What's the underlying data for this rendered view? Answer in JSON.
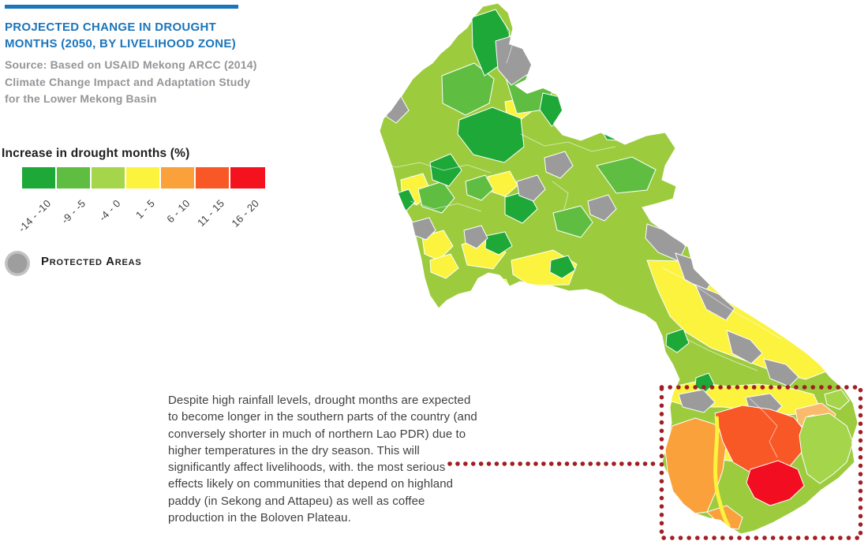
{
  "theme": {
    "accent_blue": "#1B75BB",
    "highlight_red": "#A11E22"
  },
  "header": {
    "title": "PROJECTED CHANGE IN DROUGHT MONTHS (2050, BY LIVELIHOOD ZONE)",
    "source": "Source: Based on USAID Mekong ARCC (2014) Climate Change Impact and Adaptation Study for the Lower Mekong Basin"
  },
  "legend": {
    "title": "Increase in drought months (%)",
    "classes": [
      {
        "label": "-14 - -10",
        "color": "#1DA838"
      },
      {
        "label": "-9 - -5",
        "color": "#5FBE41"
      },
      {
        "label": "-4 - 0",
        "color": "#A5D54A"
      },
      {
        "label": "1 - 5",
        "color": "#FBF33D"
      },
      {
        "label": "6 - 10",
        "color": "#FAA13B"
      },
      {
        "label": "11 - 15",
        "color": "#F75826"
      },
      {
        "label": "16 - 20",
        "color": "#F5121F"
      }
    ],
    "protected": {
      "label": "Protected Areas",
      "fill": "#9E9E9E",
      "ring": "#C2C2C2"
    }
  },
  "annotation": {
    "text": "Despite high rainfall levels, drought months are expected to become longer in the southern parts of the country (and conversely shorter in much of northern Lao PDR) due to higher temperatures in the dry season. This will significantly affect livelihoods, with. the most serious effects likely on communities that depend on highland paddy (in Sekong and Attapeu) as well as coffee production in the Boloven Plateau."
  },
  "map": {
    "palette": {
      "base": "#9CCB3E",
      "dg": "#1DA838",
      "mg": "#5FBE41",
      "lg": "#A5D54A",
      "y": "#FBF33D",
      "o": "#FAA13B",
      "po": "#F9BA6B",
      "ro": "#F75826",
      "r": "#F20D20",
      "gray": "#9B9B9B"
    }
  }
}
